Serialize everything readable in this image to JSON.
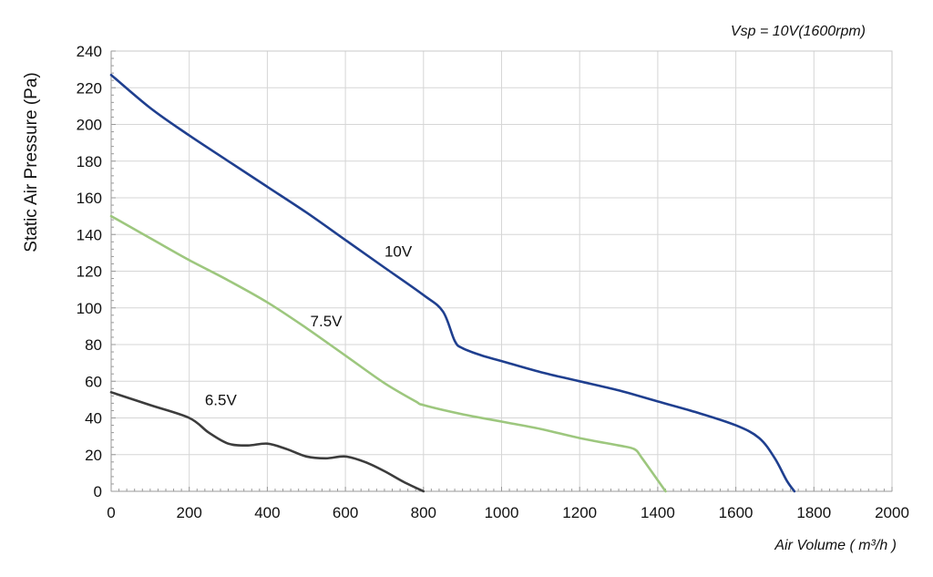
{
  "chart_data": {
    "type": "line",
    "title": "",
    "annotation": "Vsp = 10V(1600rpm)",
    "xlabel": "Air Volume ( m³/h )",
    "ylabel": "Static Air Pressure  (Pa)",
    "xlim": [
      0,
      2000
    ],
    "ylim": [
      0,
      240
    ],
    "x_ticks": [
      "0",
      "200",
      "400",
      "600",
      "800",
      "1000",
      "1200",
      "1400",
      "1600",
      "1800",
      "2000"
    ],
    "y_ticks": [
      "0",
      "20",
      "40",
      "60",
      "80",
      "100",
      "120",
      "140",
      "160",
      "180",
      "200",
      "220",
      "240"
    ],
    "grid": true,
    "legend": "inline-labels",
    "series": [
      {
        "name": "10V",
        "color": "#1f3f8f",
        "label_at": [
          700,
          128
        ],
        "x": [
          0,
          100,
          200,
          300,
          400,
          500,
          600,
          700,
          800,
          850,
          880,
          900,
          950,
          1000,
          1100,
          1200,
          1300,
          1400,
          1500,
          1600,
          1660,
          1700,
          1730,
          1750
        ],
        "y": [
          227,
          209,
          194,
          180,
          166,
          152,
          137,
          122,
          107,
          98,
          82,
          78,
          74,
          71,
          65,
          60,
          55,
          49,
          43,
          36,
          29,
          18,
          6,
          0
        ]
      },
      {
        "name": "7.5V",
        "color": "#9dc77e",
        "label_at": [
          510,
          90
        ],
        "x": [
          0,
          100,
          200,
          300,
          400,
          500,
          600,
          700,
          780,
          800,
          900,
          1000,
          1100,
          1200,
          1300,
          1340,
          1360,
          1400,
          1420
        ],
        "y": [
          150,
          138,
          126,
          115,
          103,
          89,
          74,
          59,
          49,
          47,
          42,
          38,
          34,
          29,
          25,
          23,
          18,
          6,
          0
        ]
      },
      {
        "name": "6.5V",
        "color": "#3c3c3c",
        "label_at": [
          240,
          47
        ],
        "x": [
          0,
          100,
          200,
          250,
          300,
          350,
          400,
          450,
          500,
          550,
          600,
          650,
          700,
          750,
          800
        ],
        "y": [
          54,
          47,
          40,
          32,
          26,
          25,
          26,
          23,
          19,
          18,
          19,
          16,
          11,
          5,
          0
        ]
      }
    ]
  }
}
